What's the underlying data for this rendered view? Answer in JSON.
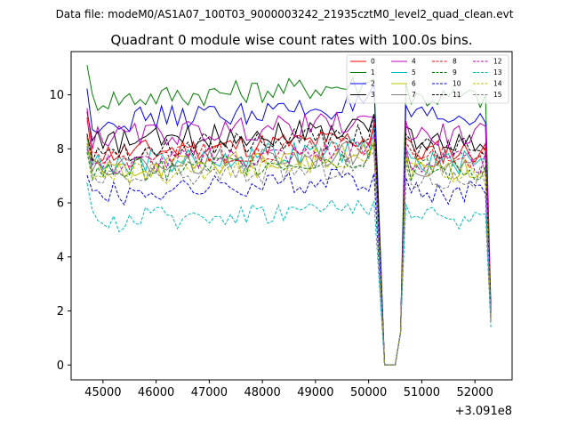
{
  "chart_data": {
    "type": "line",
    "suptitle": "Data file: modeM0/AS1A07_100T03_9000003242_21935cztM0_level2_quad_clean.evt",
    "title": "Quadrant 0 module wise count rates with 100.0s bins.",
    "xlabel": "",
    "ylabel": "",
    "x_offset_label": "+3.091e8",
    "xlim": [
      44400,
      52700
    ],
    "ylim": [
      -0.55,
      11.6
    ],
    "xticks": [
      45000,
      46000,
      47000,
      48000,
      49000,
      50000,
      51000,
      52000
    ],
    "xtick_labels": [
      "45000",
      "46000",
      "47000",
      "48000",
      "49000",
      "50000",
      "51000",
      "52000"
    ],
    "yticks": [
      0,
      2,
      4,
      6,
      8,
      10
    ],
    "ytick_labels": [
      "0",
      "2",
      "4",
      "6",
      "8",
      "10"
    ],
    "legend_location": "upper-right",
    "segments": [
      {
        "x_start": 44700,
        "count": 55,
        "step": 100
      },
      {
        "x_start": 50300,
        "count": 3,
        "step": 100
      },
      {
        "x_start": 50600,
        "count": 18,
        "step": 100
      }
    ],
    "series": [
      {
        "name": "0",
        "color": "#ff0000",
        "dash": "solid",
        "base": 7.8,
        "end": 1.8
      },
      {
        "name": "1",
        "color": "#008000",
        "dash": "solid",
        "base": 9.8,
        "end": 2.2
      },
      {
        "name": "2",
        "color": "#0000ff",
        "dash": "solid",
        "base": 9.0,
        "end": 2.0
      },
      {
        "name": "3",
        "color": "#000000",
        "dash": "solid",
        "base": 8.2,
        "end": 2.0
      },
      {
        "name": "4",
        "color": "#bf00bf",
        "dash": "solid",
        "base": 8.4,
        "end": 2.0
      },
      {
        "name": "5",
        "color": "#00bfbf",
        "dash": "solid",
        "base": 7.4,
        "end": 1.7
      },
      {
        "name": "6",
        "color": "#bfbf00",
        "dash": "solid",
        "base": 7.2,
        "end": 1.7
      },
      {
        "name": "7",
        "color": "#808080",
        "dash": "solid",
        "base": 7.3,
        "end": 1.7
      },
      {
        "name": "8",
        "color": "#ff0000",
        "dash": "dashed",
        "base": 7.6,
        "end": 1.8
      },
      {
        "name": "9",
        "color": "#008000",
        "dash": "dashed",
        "base": 7.1,
        "end": 1.7
      },
      {
        "name": "10",
        "color": "#0000ff",
        "dash": "dashed",
        "base": 6.3,
        "end": 1.6
      },
      {
        "name": "11",
        "color": "#000000",
        "dash": "dashed",
        "base": 7.9,
        "end": 1.9
      },
      {
        "name": "12",
        "color": "#bf00bf",
        "dash": "dashed",
        "base": 7.4,
        "end": 1.8
      },
      {
        "name": "13",
        "color": "#00bfbf",
        "dash": "dashed",
        "base": 5.3,
        "end": 1.4
      },
      {
        "name": "14",
        "color": "#bfbf00",
        "dash": "dashed",
        "base": 7.0,
        "end": 1.7
      },
      {
        "name": "15",
        "color": "#808080",
        "dash": "dashed",
        "base": 6.8,
        "end": 1.6
      }
    ]
  }
}
